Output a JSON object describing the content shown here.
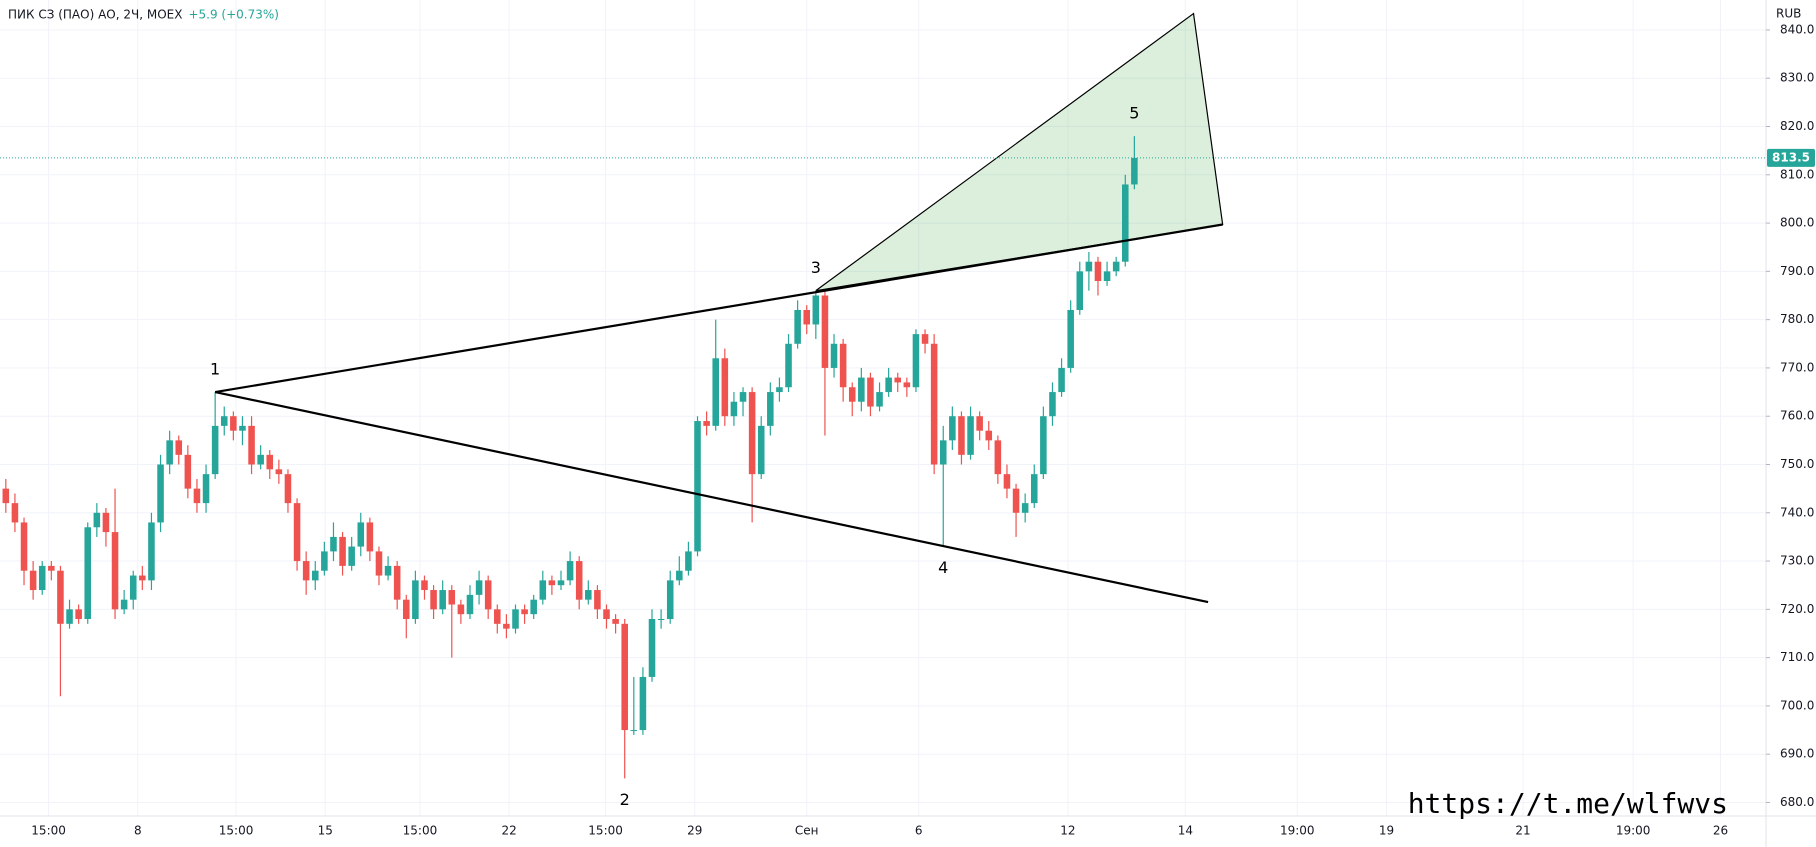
{
  "chart_data": {
    "type": "candlestick",
    "title": "ПИК СЗ (ПАО) АО, 2Ч, MOEX",
    "change": "+5.9 (+0.73%)",
    "currency": "RUB",
    "watermark": "https://t.me/wlfwvs",
    "up_color": "#26a69a",
    "down_color": "#ef5350",
    "grid": true,
    "ylim": [
      677.2,
      846.2
    ],
    "yticks": [
      {
        "value": 680,
        "label": "680.0"
      },
      {
        "value": 690,
        "label": "690.0"
      },
      {
        "value": 700,
        "label": "700.0"
      },
      {
        "value": 710,
        "label": "710.0"
      },
      {
        "value": 720,
        "label": "720.0"
      },
      {
        "value": 730,
        "label": "730.0"
      },
      {
        "value": 740,
        "label": "740.0"
      },
      {
        "value": 750,
        "label": "750.0"
      },
      {
        "value": 760,
        "label": "760.0"
      },
      {
        "value": 770,
        "label": "770.0"
      },
      {
        "value": 780,
        "label": "780.0"
      },
      {
        "value": 790,
        "label": "790.0"
      },
      {
        "value": 800,
        "label": "800.0"
      },
      {
        "value": 810,
        "label": "810.0"
      },
      {
        "value": 820,
        "label": "820.0"
      },
      {
        "value": 830,
        "label": "830.0"
      },
      {
        "value": 840,
        "label": "840.0"
      }
    ],
    "xlim": [
      -0.64,
      193.4
    ],
    "xticks": [
      {
        "value": 4.7,
        "label": "15:00"
      },
      {
        "value": 14.5,
        "label": "8"
      },
      {
        "value": 25.3,
        "label": "15:00"
      },
      {
        "value": 35.1,
        "label": "15"
      },
      {
        "value": 45.5,
        "label": "15:00"
      },
      {
        "value": 55.3,
        "label": "22"
      },
      {
        "value": 65.9,
        "label": "15:00"
      },
      {
        "value": 75.7,
        "label": "29"
      },
      {
        "value": 88.0,
        "label": "Сен"
      },
      {
        "value": 100.3,
        "label": "6"
      },
      {
        "value": 116.7,
        "label": "12"
      },
      {
        "value": 129.6,
        "label": "14"
      },
      {
        "value": 141.9,
        "label": "19:00"
      },
      {
        "value": 151.7,
        "label": "19"
      },
      {
        "value": 166.7,
        "label": "21"
      },
      {
        "value": 178.8,
        "label": "19:00"
      },
      {
        "value": 188.4,
        "label": "26"
      }
    ],
    "last_price": 813.5,
    "candles": [
      [
        745,
        747,
        740,
        742
      ],
      [
        742,
        744,
        736,
        738
      ],
      [
        738,
        739,
        725,
        728
      ],
      [
        728,
        730,
        722,
        724
      ],
      [
        724,
        730,
        723,
        729
      ],
      [
        729,
        730,
        726,
        728
      ],
      [
        728,
        729,
        702,
        717
      ],
      [
        717,
        722,
        716,
        720
      ],
      [
        720,
        721,
        717,
        718
      ],
      [
        718,
        738,
        717,
        737
      ],
      [
        737,
        742,
        735,
        740
      ],
      [
        740,
        741,
        733,
        736
      ],
      [
        736,
        745,
        718,
        720
      ],
      [
        720,
        724,
        719,
        722
      ],
      [
        722,
        728,
        720,
        727
      ],
      [
        727,
        729,
        724,
        726
      ],
      [
        726,
        740,
        724,
        738
      ],
      [
        738,
        752,
        736,
        750
      ],
      [
        750,
        757,
        748,
        755
      ],
      [
        755,
        756,
        750,
        752
      ],
      [
        752,
        754,
        743,
        745
      ],
      [
        745,
        747,
        740,
        742
      ],
      [
        742,
        750,
        740,
        748
      ],
      [
        748,
        765,
        747,
        758
      ],
      [
        758,
        762,
        756,
        760
      ],
      [
        760,
        761,
        755,
        757
      ],
      [
        757,
        760,
        754,
        758
      ],
      [
        758,
        760,
        748,
        750
      ],
      [
        750,
        754,
        749,
        752
      ],
      [
        752,
        753,
        747,
        749
      ],
      [
        749,
        751,
        746,
        748
      ],
      [
        748,
        749,
        740,
        742
      ],
      [
        742,
        743,
        728,
        730
      ],
      [
        730,
        732,
        723,
        726
      ],
      [
        726,
        730,
        724,
        728
      ],
      [
        728,
        734,
        727,
        732
      ],
      [
        732,
        738,
        730,
        735
      ],
      [
        735,
        736,
        727,
        729
      ],
      [
        729,
        735,
        728,
        733
      ],
      [
        733,
        740,
        731,
        738
      ],
      [
        738,
        739,
        730,
        732
      ],
      [
        732,
        733,
        725,
        727
      ],
      [
        727,
        731,
        726,
        729
      ],
      [
        729,
        730,
        720,
        722
      ],
      [
        722,
        723,
        714,
        718
      ],
      [
        718,
        728,
        717,
        726
      ],
      [
        726,
        727,
        722,
        724
      ],
      [
        724,
        725,
        718,
        720
      ],
      [
        720,
        726,
        719,
        724
      ],
      [
        724,
        725,
        710,
        721
      ],
      [
        721,
        722,
        717,
        719
      ],
      [
        719,
        725,
        718,
        723
      ],
      [
        723,
        728,
        721,
        726
      ],
      [
        726,
        727,
        718,
        720
      ],
      [
        720,
        721,
        715,
        717
      ],
      [
        717,
        719,
        714,
        716
      ],
      [
        716,
        721,
        715,
        720
      ],
      [
        720,
        721,
        717,
        719
      ],
      [
        719,
        723,
        718,
        722
      ],
      [
        722,
        728,
        721,
        726
      ],
      [
        726,
        727,
        723,
        725
      ],
      [
        725,
        728,
        724,
        726
      ],
      [
        726,
        732,
        725,
        730
      ],
      [
        730,
        731,
        720,
        722
      ],
      [
        722,
        726,
        721,
        724
      ],
      [
        724,
        725,
        718,
        720
      ],
      [
        720,
        721,
        716,
        718
      ],
      [
        718,
        719,
        715,
        717
      ],
      [
        717,
        718,
        685,
        695
      ],
      [
        695,
        706,
        694,
        695
      ],
      [
        695,
        708,
        694,
        706
      ],
      [
        706,
        720,
        705,
        718
      ],
      [
        718,
        720,
        716,
        718
      ],
      [
        718,
        728,
        717,
        726
      ],
      [
        726,
        731,
        725,
        728
      ],
      [
        728,
        734,
        727,
        732
      ],
      [
        732,
        760,
        731,
        759
      ],
      [
        759,
        761,
        756,
        758
      ],
      [
        758,
        780,
        757,
        772
      ],
      [
        772,
        774,
        758,
        760
      ],
      [
        760,
        765,
        758,
        763
      ],
      [
        763,
        766,
        760,
        765
      ],
      [
        765,
        766,
        738,
        748
      ],
      [
        748,
        760,
        747,
        758
      ],
      [
        758,
        767,
        756,
        765
      ],
      [
        765,
        768,
        763,
        766
      ],
      [
        766,
        777,
        765,
        775
      ],
      [
        775,
        784,
        774,
        782
      ],
      [
        782,
        783,
        777,
        779
      ],
      [
        779,
        786,
        776,
        785
      ],
      [
        785,
        786,
        756,
        770
      ],
      [
        770,
        777,
        768,
        775
      ],
      [
        775,
        776,
        763,
        766
      ],
      [
        766,
        767,
        760,
        763
      ],
      [
        763,
        770,
        761,
        768
      ],
      [
        768,
        769,
        760,
        762
      ],
      [
        762,
        767,
        761,
        765
      ],
      [
        765,
        770,
        764,
        768
      ],
      [
        768,
        769,
        765,
        767
      ],
      [
        767,
        768,
        764,
        766
      ],
      [
        766,
        778,
        765,
        777
      ],
      [
        777,
        778,
        773,
        775
      ],
      [
        775,
        777,
        748,
        750
      ],
      [
        750,
        758,
        733,
        755
      ],
      [
        755,
        762,
        753,
        760
      ],
      [
        760,
        761,
        750,
        752
      ],
      [
        752,
        762,
        751,
        760
      ],
      [
        760,
        761,
        755,
        757
      ],
      [
        757,
        759,
        753,
        755
      ],
      [
        755,
        756,
        746,
        748
      ],
      [
        748,
        750,
        743,
        745
      ],
      [
        745,
        746,
        735,
        740
      ],
      [
        740,
        744,
        738,
        742
      ],
      [
        742,
        750,
        741,
        748
      ],
      [
        748,
        762,
        747,
        760
      ],
      [
        760,
        767,
        758,
        765
      ],
      [
        765,
        772,
        764,
        770
      ],
      [
        770,
        784,
        769,
        782
      ],
      [
        782,
        792,
        781,
        790
      ],
      [
        790,
        794,
        786,
        792
      ],
      [
        792,
        793,
        785,
        788
      ],
      [
        788,
        792,
        787,
        790
      ],
      [
        790,
        793,
        789,
        792
      ],
      [
        792,
        810,
        791,
        808
      ],
      [
        808,
        818,
        807,
        813.5
      ]
    ],
    "pattern_points": [
      {
        "label": "1",
        "x": 23,
        "y": 765
      },
      {
        "label": "2",
        "x": 68,
        "y": 685
      },
      {
        "label": "3",
        "x": 89,
        "y": 786
      },
      {
        "label": "4",
        "x": 103,
        "y": 733
      },
      {
        "label": "5",
        "x": 124,
        "y": 818
      }
    ],
    "trend_lines": [
      [
        [
          23,
          765
        ],
        [
          133.7,
          799.7
        ]
      ],
      [
        [
          23,
          765
        ],
        [
          132.1,
          721.5
        ]
      ]
    ],
    "triangle": [
      [
        89,
        786
      ],
      [
        130.5,
        843.4
      ],
      [
        133.7,
        799.7
      ]
    ]
  }
}
